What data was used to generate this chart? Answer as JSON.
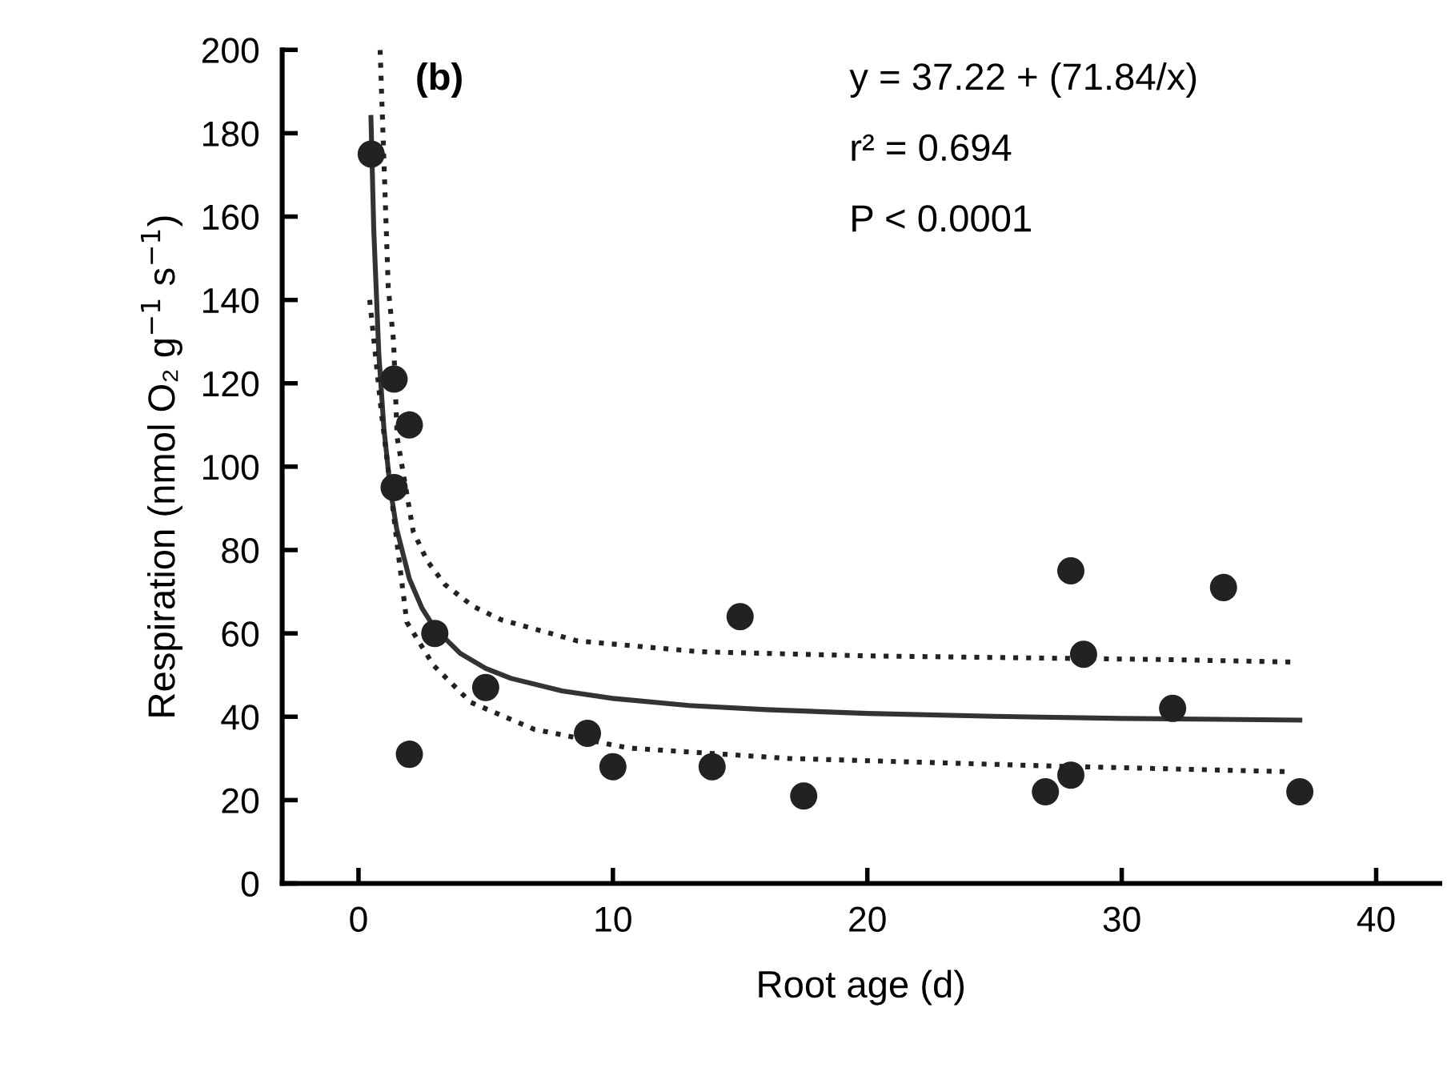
{
  "chart_data": {
    "type": "scatter",
    "xlabel": "Root age (d)",
    "ylabel": "Respiration (nmol O₂ g$^{−1}$ s$^{−1}$)",
    "annotations": [
      "(b)",
      "y = 37.22 + (71.84/x)",
      "r² = 0.694",
      "P < 0.0001"
    ],
    "xlim": [
      -3,
      42.5
    ],
    "xticks": [
      0,
      10,
      20,
      30,
      40
    ],
    "ylim": [
      0,
      200
    ],
    "yticks": [
      0,
      20,
      40,
      60,
      80,
      100,
      120,
      140,
      160,
      180,
      200
    ],
    "grid": false,
    "legend": false,
    "series": [
      {
        "color": "#222222",
        "marker": "circle",
        "x": [
          0.5,
          1.4,
          2.0,
          1.4,
          2.0,
          3.0,
          5.0,
          9.0,
          10.0,
          13.9,
          15.0,
          17.5,
          27.0,
          28.0,
          28.0,
          28.5,
          32.0,
          34.0,
          37.0
        ],
        "values": [
          175,
          121,
          110,
          95,
          31,
          60,
          47,
          36,
          28,
          28,
          64,
          21,
          22,
          26,
          75,
          55,
          42,
          71,
          22
        ]
      },
      {
        "type": "line",
        "color": "#333333",
        "marker": "none",
        "line_style": "solid",
        "x": [
          0.49,
          0.6,
          0.8,
          1,
          1.25,
          1.5,
          2,
          2.5,
          3,
          4,
          5,
          6,
          8,
          10,
          13,
          16,
          20,
          25,
          30,
          37
        ],
        "values": [
          183.8,
          156.9,
          127.0,
          109.1,
          94.7,
          85.1,
          73.1,
          66.0,
          61.2,
          55.2,
          51.6,
          49.2,
          46.2,
          44.4,
          42.7,
          41.7,
          40.8,
          40.1,
          39.6,
          39.2
        ]
      },
      {
        "type": "line",
        "color": "#222222",
        "marker": "none",
        "line_style": "dotted",
        "x": [
          0.85,
          1.17,
          1.38,
          1.52,
          2.15,
          2.7,
          3.4,
          4.5,
          5.6,
          8.6,
          13.4,
          20,
          31.9,
          36.9
        ],
        "values": [
          200,
          143,
          130,
          107,
          84.5,
          77.4,
          71.7,
          66.5,
          63.3,
          58.2,
          55.6,
          54.6,
          53.7,
          53.1
        ]
      },
      {
        "type": "line",
        "color": "#222222",
        "marker": "none",
        "line_style": "dotted",
        "x": [
          0.44,
          0.9,
          1.52,
          1.9,
          2.94,
          4.4,
          6.9,
          10.6,
          16.9,
          27.7,
          36.7
        ],
        "values": [
          140,
          113,
          81.3,
          62.7,
          52.4,
          43.5,
          37,
          32.5,
          30,
          28.1,
          26.8
        ]
      }
    ]
  }
}
